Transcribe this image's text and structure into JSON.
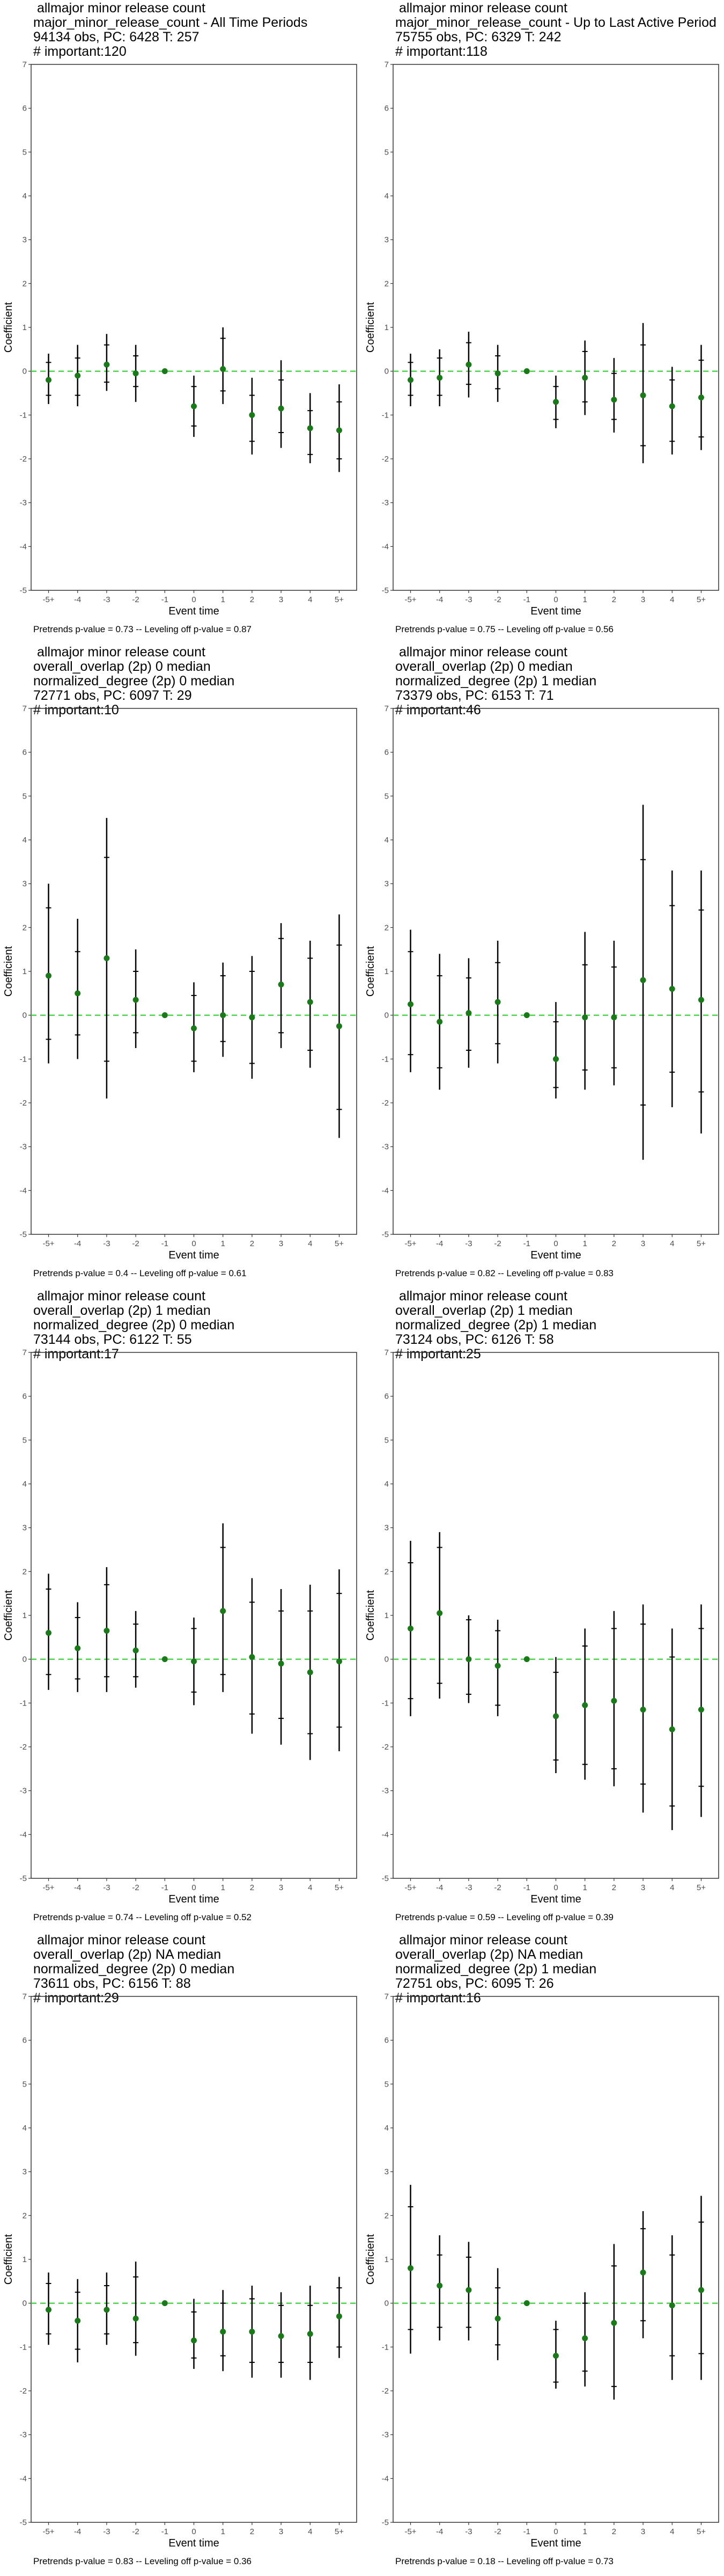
{
  "chart_data": [
    {
      "type": "errorbar",
      "title_lines": [
        "allmajor minor release count",
        "major_minor_release_count - All Time Periods",
        "94134 obs, PC: 6428 T: 257",
        "# important:120"
      ],
      "xlabel": "Event time",
      "ylabel": "Coefficient",
      "categories": [
        "-5+",
        "-4",
        "-3",
        "-2",
        "-1",
        "0",
        "1",
        "2",
        "3",
        "4",
        "5+"
      ],
      "ylim": [
        -5,
        7
      ],
      "yticks": [
        -5,
        -4,
        -3,
        -2,
        -1,
        0,
        1,
        2,
        3,
        4,
        5,
        6,
        7
      ],
      "estimates": [
        -0.2,
        -0.1,
        0.15,
        -0.05,
        0.0,
        -0.8,
        0.05,
        -1.0,
        -0.85,
        -1.3,
        -1.35
      ],
      "ci_outer": [
        [
          -0.75,
          0.4
        ],
        [
          -0.8,
          0.6
        ],
        [
          -0.45,
          0.85
        ],
        [
          -0.7,
          0.6
        ],
        [
          0,
          0
        ],
        [
          -1.5,
          -0.1
        ],
        [
          -0.75,
          1.0
        ],
        [
          -1.9,
          -0.15
        ],
        [
          -1.75,
          0.25
        ],
        [
          -2.1,
          -0.5
        ],
        [
          -2.3,
          -0.3
        ]
      ],
      "ci_inner": [
        [
          -0.55,
          0.2
        ],
        [
          -0.55,
          0.3
        ],
        [
          -0.25,
          0.6
        ],
        [
          -0.35,
          0.35
        ],
        [
          0,
          0
        ],
        [
          -1.25,
          -0.35
        ],
        [
          -0.45,
          0.75
        ],
        [
          -1.6,
          -0.55
        ],
        [
          -1.4,
          -0.2
        ],
        [
          -1.9,
          -0.9
        ],
        [
          -2.0,
          -0.7
        ]
      ],
      "reference_line": 0,
      "footer": "Pretrends p-value = 0.73 -- Leveling off p-value = 0.87"
    },
    {
      "type": "errorbar",
      "title_lines": [
        "allmajor minor release count",
        "major_minor_release_count - Up to Last Active Period",
        "75755 obs, PC: 6329 T: 242",
        "# important:118"
      ],
      "xlabel": "Event time",
      "ylabel": "Coefficient",
      "categories": [
        "-5+",
        "-4",
        "-3",
        "-2",
        "-1",
        "0",
        "1",
        "2",
        "3",
        "4",
        "5+"
      ],
      "ylim": [
        -5,
        7
      ],
      "yticks": [
        -5,
        -4,
        -3,
        -2,
        -1,
        0,
        1,
        2,
        3,
        4,
        5,
        6,
        7
      ],
      "estimates": [
        -0.2,
        -0.15,
        0.15,
        -0.05,
        0.0,
        -0.7,
        -0.15,
        -0.65,
        -0.55,
        -0.8,
        -0.6
      ],
      "ci_outer": [
        [
          -0.8,
          0.4
        ],
        [
          -0.8,
          0.5
        ],
        [
          -0.6,
          0.9
        ],
        [
          -0.7,
          0.6
        ],
        [
          0,
          0
        ],
        [
          -1.3,
          -0.1
        ],
        [
          -1.0,
          0.7
        ],
        [
          -1.4,
          0.3
        ],
        [
          -2.1,
          1.1
        ],
        [
          -1.9,
          0.1
        ],
        [
          -1.8,
          0.6
        ]
      ],
      "ci_inner": [
        [
          -0.55,
          0.2
        ],
        [
          -0.55,
          0.3
        ],
        [
          -0.3,
          0.65
        ],
        [
          -0.4,
          0.35
        ],
        [
          0,
          0
        ],
        [
          -1.1,
          -0.35
        ],
        [
          -0.7,
          0.45
        ],
        [
          -1.1,
          -0.05
        ],
        [
          -1.7,
          0.6
        ],
        [
          -1.6,
          -0.2
        ],
        [
          -1.5,
          0.25
        ]
      ],
      "reference_line": 0,
      "footer": "Pretrends p-value = 0.75 -- Leveling off p-value = 0.56"
    },
    {
      "type": "errorbar",
      "title_lines": [
        "allmajor minor release count",
        "overall_overlap (2p) 0 median",
        "normalized_degree (2p) 0 median",
        "72771 obs, PC: 6097 T: 29",
        "# important:10"
      ],
      "xlabel": "Event time",
      "ylabel": "Coefficient",
      "categories": [
        "-5+",
        "-4",
        "-3",
        "-2",
        "-1",
        "0",
        "1",
        "2",
        "3",
        "4",
        "5+"
      ],
      "ylim": [
        -5,
        7
      ],
      "yticks": [
        -5,
        -4,
        -3,
        -2,
        -1,
        0,
        1,
        2,
        3,
        4,
        5,
        6,
        7
      ],
      "estimates": [
        0.9,
        0.5,
        1.3,
        0.35,
        0.0,
        -0.3,
        0.0,
        -0.05,
        0.7,
        0.3,
        -0.25
      ],
      "ci_outer": [
        [
          -1.1,
          3.0
        ],
        [
          -1.0,
          2.2
        ],
        [
          -1.9,
          4.5
        ],
        [
          -0.75,
          1.5
        ],
        [
          0,
          0
        ],
        [
          -1.3,
          0.75
        ],
        [
          -0.95,
          1.2
        ],
        [
          -1.45,
          1.35
        ],
        [
          -0.75,
          2.1
        ],
        [
          -1.2,
          1.7
        ],
        [
          -2.8,
          2.3
        ]
      ],
      "ci_inner": [
        [
          -0.55,
          2.45
        ],
        [
          -0.45,
          1.45
        ],
        [
          -1.05,
          3.6
        ],
        [
          -0.4,
          1.0
        ],
        [
          0,
          0
        ],
        [
          -1.05,
          0.45
        ],
        [
          -0.6,
          0.9
        ],
        [
          -1.1,
          1.0
        ],
        [
          -0.4,
          1.75
        ],
        [
          -0.8,
          1.3
        ],
        [
          -2.15,
          1.6
        ]
      ],
      "reference_line": 0,
      "footer": "Pretrends p-value = 0.4 -- Leveling off p-value = 0.61"
    },
    {
      "type": "errorbar",
      "title_lines": [
        "allmajor minor release count",
        "overall_overlap (2p) 0 median",
        "normalized_degree (2p) 1 median",
        "73379 obs, PC: 6153 T: 71",
        "# important:46"
      ],
      "xlabel": "Event time",
      "ylabel": "Coefficient",
      "categories": [
        "-5+",
        "-4",
        "-3",
        "-2",
        "-1",
        "0",
        "1",
        "2",
        "3",
        "4",
        "5+"
      ],
      "ylim": [
        -5,
        7
      ],
      "yticks": [
        -5,
        -4,
        -3,
        -2,
        -1,
        0,
        1,
        2,
        3,
        4,
        5,
        6,
        7
      ],
      "estimates": [
        0.25,
        -0.15,
        0.05,
        0.3,
        0.0,
        -1.0,
        -0.05,
        -0.05,
        0.8,
        0.6,
        0.35
      ],
      "ci_outer": [
        [
          -1.3,
          1.95
        ],
        [
          -1.7,
          1.4
        ],
        [
          -1.2,
          1.3
        ],
        [
          -1.1,
          1.7
        ],
        [
          0,
          0
        ],
        [
          -1.9,
          0.3
        ],
        [
          -1.7,
          1.9
        ],
        [
          -1.6,
          1.7
        ],
        [
          -3.3,
          4.8
        ],
        [
          -2.1,
          3.3
        ],
        [
          -2.7,
          3.3
        ]
      ],
      "ci_inner": [
        [
          -0.9,
          1.45
        ],
        [
          -1.2,
          0.9
        ],
        [
          -0.8,
          0.85
        ],
        [
          -0.65,
          1.2
        ],
        [
          0,
          0
        ],
        [
          -1.65,
          -0.15
        ],
        [
          -1.25,
          1.15
        ],
        [
          -1.2,
          1.1
        ],
        [
          -2.05,
          3.55
        ],
        [
          -1.3,
          2.5
        ],
        [
          -1.75,
          2.4
        ]
      ],
      "reference_line": 0,
      "footer": "Pretrends p-value = 0.82 -- Leveling off p-value = 0.83"
    },
    {
      "type": "errorbar",
      "title_lines": [
        "allmajor minor release count",
        "overall_overlap (2p) 1 median",
        "normalized_degree (2p) 0 median",
        "73144 obs, PC: 6122 T: 55",
        "# important:17"
      ],
      "xlabel": "Event time",
      "ylabel": "Coefficient",
      "categories": [
        "-5+",
        "-4",
        "-3",
        "-2",
        "-1",
        "0",
        "1",
        "2",
        "3",
        "4",
        "5+"
      ],
      "ylim": [
        -5,
        7
      ],
      "yticks": [
        -5,
        -4,
        -3,
        -2,
        -1,
        0,
        1,
        2,
        3,
        4,
        5,
        6,
        7
      ],
      "estimates": [
        0.6,
        0.25,
        0.65,
        0.2,
        0.0,
        -0.05,
        1.1,
        0.05,
        -0.1,
        -0.3,
        -0.05
      ],
      "ci_outer": [
        [
          -0.7,
          1.95
        ],
        [
          -0.75,
          1.3
        ],
        [
          -0.75,
          2.1
        ],
        [
          -0.65,
          1.1
        ],
        [
          0,
          0
        ],
        [
          -1.05,
          0.95
        ],
        [
          -0.75,
          3.1
        ],
        [
          -1.7,
          1.85
        ],
        [
          -1.95,
          1.6
        ],
        [
          -2.3,
          1.7
        ],
        [
          -2.1,
          2.05
        ]
      ],
      "ci_inner": [
        [
          -0.35,
          1.6
        ],
        [
          -0.45,
          0.95
        ],
        [
          -0.4,
          1.7
        ],
        [
          -0.4,
          0.8
        ],
        [
          0,
          0
        ],
        [
          -0.75,
          0.7
        ],
        [
          -0.35,
          2.55
        ],
        [
          -1.25,
          1.3
        ],
        [
          -1.35,
          1.1
        ],
        [
          -1.7,
          1.1
        ],
        [
          -1.55,
          1.5
        ]
      ],
      "reference_line": 0,
      "footer": "Pretrends p-value = 0.74 -- Leveling off p-value = 0.52"
    },
    {
      "type": "errorbar",
      "title_lines": [
        "allmajor minor release count",
        "overall_overlap (2p) 1 median",
        "normalized_degree (2p) 1 median",
        "73124 obs, PC: 6126 T: 58",
        "# important:25"
      ],
      "xlabel": "Event time",
      "ylabel": "Coefficient",
      "categories": [
        "-5+",
        "-4",
        "-3",
        "-2",
        "-1",
        "0",
        "1",
        "2",
        "3",
        "4",
        "5+"
      ],
      "ylim": [
        -5,
        7
      ],
      "yticks": [
        -5,
        -4,
        -3,
        -2,
        -1,
        0,
        1,
        2,
        3,
        4,
        5,
        6,
        7
      ],
      "estimates": [
        0.7,
        1.05,
        0.0,
        -0.15,
        0.0,
        -1.3,
        -1.05,
        -0.95,
        -1.15,
        -1.6,
        -1.15
      ],
      "ci_outer": [
        [
          -1.3,
          2.7
        ],
        [
          -0.9,
          2.9
        ],
        [
          -1.0,
          1.0
        ],
        [
          -1.3,
          0.9
        ],
        [
          0,
          0
        ],
        [
          -2.6,
          0.05
        ],
        [
          -2.75,
          0.7
        ],
        [
          -2.9,
          1.1
        ],
        [
          -3.5,
          1.25
        ],
        [
          -3.9,
          0.7
        ],
        [
          -3.6,
          1.25
        ]
      ],
      "ci_inner": [
        [
          -0.9,
          2.2
        ],
        [
          -0.55,
          2.55
        ],
        [
          -0.8,
          0.9
        ],
        [
          -1.05,
          0.65
        ],
        [
          0,
          0
        ],
        [
          -2.3,
          -0.3
        ],
        [
          -2.4,
          0.3
        ],
        [
          -2.5,
          0.7
        ],
        [
          -2.85,
          0.8
        ],
        [
          -3.35,
          0.05
        ],
        [
          -2.9,
          0.7
        ]
      ],
      "reference_line": 0,
      "footer": "Pretrends p-value = 0.59 -- Leveling off p-value = 0.39"
    },
    {
      "type": "errorbar",
      "title_lines": [
        "allmajor minor release count",
        "overall_overlap (2p) NA median",
        "normalized_degree (2p) 0 median",
        "73611 obs, PC: 6156 T: 88",
        "# important:29"
      ],
      "xlabel": "Event time",
      "ylabel": "Coefficient",
      "categories": [
        "-5+",
        "-4",
        "-3",
        "-2",
        "-1",
        "0",
        "1",
        "2",
        "3",
        "4",
        "5+"
      ],
      "ylim": [
        -5,
        7
      ],
      "yticks": [
        -5,
        -4,
        -3,
        -2,
        -1,
        0,
        1,
        2,
        3,
        4,
        5,
        6,
        7
      ],
      "estimates": [
        -0.15,
        -0.4,
        -0.15,
        -0.35,
        0.0,
        -0.85,
        -0.65,
        -0.65,
        -0.75,
        -0.7,
        -0.3
      ],
      "ci_outer": [
        [
          -0.95,
          0.7
        ],
        [
          -1.35,
          0.55
        ],
        [
          -0.95,
          0.7
        ],
        [
          -1.2,
          0.95
        ],
        [
          0,
          0
        ],
        [
          -1.5,
          0.1
        ],
        [
          -1.55,
          0.3
        ],
        [
          -1.7,
          0.4
        ],
        [
          -1.7,
          0.25
        ],
        [
          -1.75,
          0.4
        ],
        [
          -1.25,
          0.6
        ]
      ],
      "ci_inner": [
        [
          -0.7,
          0.45
        ],
        [
          -1.05,
          0.25
        ],
        [
          -0.7,
          0.4
        ],
        [
          -0.9,
          0.6
        ],
        [
          0,
          0
        ],
        [
          -1.25,
          -0.2
        ],
        [
          -1.2,
          0.0
        ],
        [
          -1.35,
          0.1
        ],
        [
          -1.35,
          -0.05
        ],
        [
          -1.35,
          -0.05
        ],
        [
          -1.0,
          0.35
        ]
      ],
      "reference_line": 0,
      "footer": "Pretrends p-value = 0.83 -- Leveling off p-value = 0.36"
    },
    {
      "type": "errorbar",
      "title_lines": [
        "allmajor minor release count",
        "overall_overlap (2p) NA median",
        "normalized_degree (2p) 1 median",
        "72751 obs, PC: 6095 T: 26",
        "# important:16"
      ],
      "xlabel": "Event time",
      "ylabel": "Coefficient",
      "categories": [
        "-5+",
        "-4",
        "-3",
        "-2",
        "-1",
        "0",
        "1",
        "2",
        "3",
        "4",
        "5+"
      ],
      "ylim": [
        -5,
        7
      ],
      "yticks": [
        -5,
        -4,
        -3,
        -2,
        -1,
        0,
        1,
        2,
        3,
        4,
        5,
        6,
        7
      ],
      "estimates": [
        0.8,
        0.4,
        0.3,
        -0.35,
        0.0,
        -1.2,
        -0.8,
        -0.45,
        0.7,
        -0.05,
        0.3
      ],
      "ci_outer": [
        [
          -1.15,
          2.7
        ],
        [
          -0.85,
          1.55
        ],
        [
          -0.85,
          1.4
        ],
        [
          -1.3,
          0.8
        ],
        [
          0,
          0
        ],
        [
          -1.95,
          -0.4
        ],
        [
          -1.9,
          0.25
        ],
        [
          -2.2,
          1.35
        ],
        [
          -0.8,
          2.1
        ],
        [
          -1.75,
          1.55
        ],
        [
          -1.75,
          2.45
        ]
      ],
      "ci_inner": [
        [
          -0.6,
          2.2
        ],
        [
          -0.55,
          1.1
        ],
        [
          -0.55,
          1.05
        ],
        [
          -0.95,
          0.35
        ],
        [
          0,
          0
        ],
        [
          -1.8,
          -0.6
        ],
        [
          -1.55,
          0.0
        ],
        [
          -1.9,
          0.85
        ],
        [
          -0.4,
          1.7
        ],
        [
          -1.2,
          1.1
        ],
        [
          -1.15,
          1.85
        ]
      ],
      "reference_line": 0,
      "footer": "Pretrends p-value = 0.18 -- Leveling off p-value = 0.73"
    }
  ],
  "colors": {
    "reference_line": "#33cc33",
    "point": "#1a7a1a",
    "error_bar": "#000000",
    "axis": "#333333",
    "tick_label": "#4d4d4d"
  }
}
